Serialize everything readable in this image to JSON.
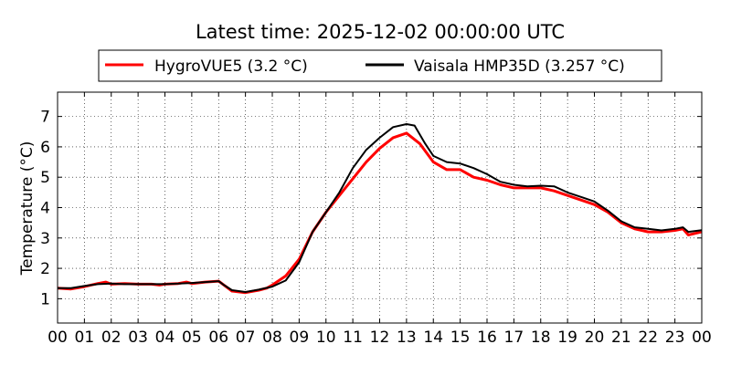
{
  "chart_data": {
    "type": "line",
    "title": "Latest time: 2025-12-02 00:00:00 UTC",
    "xlabel": "",
    "ylabel": "Temperature (°C)",
    "xlim": [
      0,
      24
    ],
    "ylim": [
      0.2,
      7.8
    ],
    "grid": true,
    "legend_position": "top",
    "x_ticks": [
      0,
      1,
      2,
      3,
      4,
      5,
      6,
      7,
      8,
      9,
      10,
      11,
      12,
      13,
      14,
      15,
      16,
      17,
      18,
      19,
      20,
      21,
      22,
      23,
      24
    ],
    "x_tick_labels": [
      "00",
      "01",
      "02",
      "03",
      "04",
      "05",
      "06",
      "07",
      "08",
      "09",
      "10",
      "11",
      "12",
      "13",
      "14",
      "15",
      "16",
      "17",
      "18",
      "19",
      "20",
      "21",
      "22",
      "23",
      "00"
    ],
    "y_ticks": [
      1,
      2,
      3,
      4,
      5,
      6,
      7
    ],
    "y_tick_labels": [
      "1",
      "2",
      "3",
      "4",
      "5",
      "6",
      "7"
    ],
    "series": [
      {
        "name": "HygroVUE5 (3.2 °C)",
        "color": "#ff0000",
        "x": [
          0,
          0.5,
          1,
          1.5,
          1.8,
          2,
          2.5,
          3,
          3.5,
          3.8,
          4,
          4.5,
          4.8,
          5,
          5.5,
          6,
          6.2,
          6.5,
          7,
          7.5,
          7.8,
          8,
          8.5,
          9,
          9.5,
          10,
          10.5,
          11,
          11.5,
          12,
          12.5,
          13,
          13.5,
          14,
          14.5,
          15,
          15.5,
          16,
          16.5,
          17,
          17.5,
          18,
          18.5,
          19,
          19.5,
          20,
          20.5,
          21,
          21.5,
          22,
          22.5,
          23,
          23.3,
          23.5,
          24
        ],
        "y": [
          1.35,
          1.32,
          1.4,
          1.5,
          1.55,
          1.48,
          1.5,
          1.48,
          1.48,
          1.45,
          1.48,
          1.5,
          1.55,
          1.5,
          1.55,
          1.58,
          1.45,
          1.25,
          1.2,
          1.28,
          1.35,
          1.45,
          1.75,
          2.3,
          3.2,
          3.85,
          4.4,
          4.95,
          5.5,
          5.95,
          6.3,
          6.45,
          6.1,
          5.5,
          5.25,
          5.25,
          5.0,
          4.9,
          4.75,
          4.65,
          4.65,
          4.65,
          4.55,
          4.4,
          4.25,
          4.1,
          3.85,
          3.5,
          3.3,
          3.2,
          3.2,
          3.25,
          3.3,
          3.1,
          3.2
        ]
      },
      {
        "name": "Vaisala HMP35D (3.257 °C)",
        "color": "#000000",
        "x": [
          0,
          0.5,
          1,
          1.5,
          2,
          2.5,
          3,
          3.5,
          4,
          4.5,
          5,
          5.5,
          6,
          6.2,
          6.5,
          7,
          7.5,
          8,
          8.5,
          9,
          9.5,
          10,
          10.5,
          11,
          11.5,
          12,
          12.5,
          13,
          13.3,
          13.7,
          14,
          14.5,
          15,
          15.5,
          16,
          16.5,
          17,
          17.5,
          18,
          18.5,
          19,
          19.5,
          20,
          20.5,
          21,
          21.5,
          22,
          22.5,
          23,
          23.3,
          23.5,
          24
        ],
        "y": [
          1.35,
          1.35,
          1.42,
          1.48,
          1.5,
          1.48,
          1.48,
          1.48,
          1.48,
          1.5,
          1.52,
          1.55,
          1.58,
          1.45,
          1.28,
          1.22,
          1.3,
          1.4,
          1.6,
          2.2,
          3.2,
          3.85,
          4.5,
          5.3,
          5.9,
          6.3,
          6.65,
          6.75,
          6.7,
          6.1,
          5.7,
          5.5,
          5.45,
          5.3,
          5.1,
          4.85,
          4.75,
          4.7,
          4.72,
          4.7,
          4.5,
          4.35,
          4.2,
          3.9,
          3.55,
          3.35,
          3.3,
          3.25,
          3.3,
          3.35,
          3.2,
          3.257
        ]
      }
    ]
  }
}
